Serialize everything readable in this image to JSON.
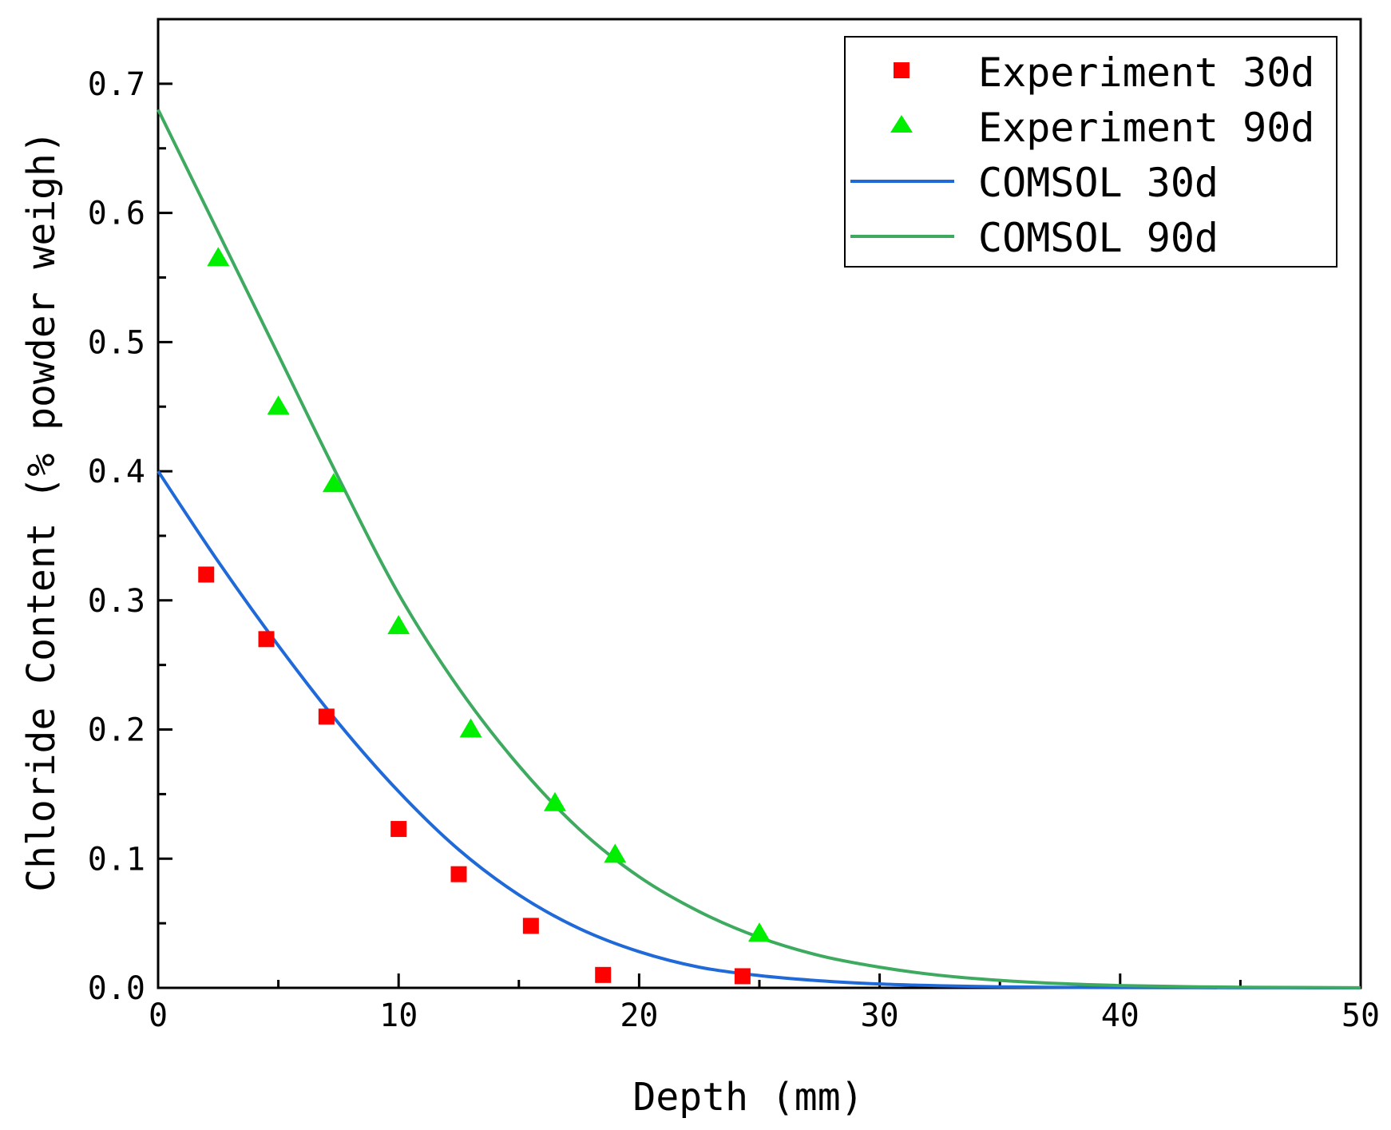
{
  "chart_data": {
    "type": "scatter",
    "xlabel": "Depth (mm)",
    "ylabel": "Chloride Content (% powder weigh)",
    "xlim": [
      0,
      50
    ],
    "ylim": [
      0,
      0.75
    ],
    "x_ticks": [
      "0",
      "10",
      "20",
      "30",
      "40",
      "50"
    ],
    "y_ticks": [
      "0.0",
      "0.1",
      "0.2",
      "0.3",
      "0.4",
      "0.5",
      "0.6",
      "0.7"
    ],
    "x_tick_values": [
      0,
      10,
      20,
      30,
      40,
      50
    ],
    "y_tick_values": [
      0,
      0.1,
      0.2,
      0.3,
      0.4,
      0.5,
      0.6,
      0.7
    ],
    "legend_position": "top-right",
    "series": [
      {
        "name": "Experiment 30d",
        "kind": "scatter",
        "marker": "square",
        "color": "#ff0000",
        "x": [
          2.0,
          4.5,
          7.0,
          10.0,
          12.5,
          15.5,
          18.5,
          24.3
        ],
        "y": [
          0.32,
          0.27,
          0.21,
          0.123,
          0.088,
          0.048,
          0.01,
          0.009
        ]
      },
      {
        "name": "Experiment 90d",
        "kind": "scatter",
        "marker": "triangle",
        "color": "#00ee00",
        "x": [
          2.5,
          5.0,
          7.3,
          10.0,
          13.0,
          16.5,
          19.0,
          25.0
        ],
        "y": [
          0.565,
          0.45,
          0.39,
          0.28,
          0.2,
          0.143,
          0.103,
          0.042
        ]
      },
      {
        "name": "COMSOL 30d",
        "kind": "line",
        "color": "#1f6ad8",
        "x": [
          0,
          2.5,
          5,
          7.5,
          10,
          12.5,
          15,
          17.5,
          20,
          22.5,
          25,
          27.5,
          30,
          32.5,
          35,
          37.5,
          40,
          45,
          50
        ],
        "y": [
          0.4,
          0.33,
          0.265,
          0.205,
          0.152,
          0.107,
          0.072,
          0.046,
          0.028,
          0.016,
          0.0095,
          0.0055,
          0.003,
          0.0016,
          0.0008,
          0.0004,
          0.0002,
          0.0001,
          0.0
        ]
      },
      {
        "name": "COMSOL 90d",
        "kind": "line",
        "color": "#3daa60",
        "x": [
          0,
          2.5,
          5,
          7.5,
          10,
          12.5,
          15,
          17.5,
          20,
          22.5,
          25,
          27.5,
          30,
          32.5,
          35,
          37.5,
          40,
          42.5,
          45,
          50
        ],
        "y": [
          0.68,
          0.585,
          0.49,
          0.395,
          0.305,
          0.232,
          0.172,
          0.123,
          0.086,
          0.059,
          0.039,
          0.025,
          0.016,
          0.0097,
          0.0058,
          0.0033,
          0.0018,
          0.001,
          0.0005,
          0.0001
        ]
      }
    ]
  }
}
